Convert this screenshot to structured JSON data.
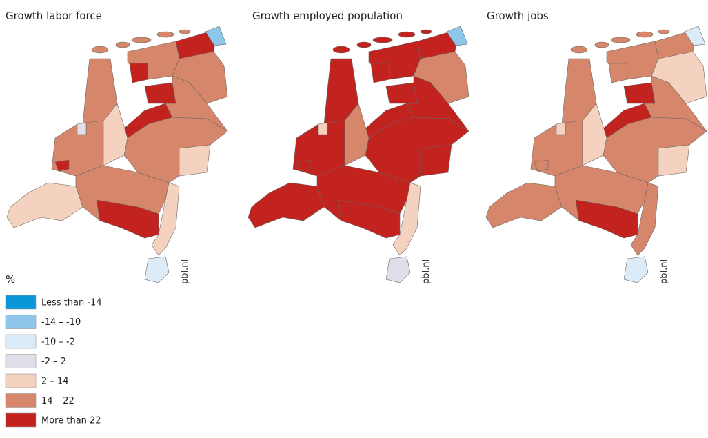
{
  "maps": [
    {
      "title": "Growth labor force"
    },
    {
      "title": "Growth employed population"
    },
    {
      "title": "Growth jobs"
    }
  ],
  "source": "pbl.nl",
  "legend": {
    "unit": "%",
    "items": [
      {
        "label": "Less than -14",
        "color": "#0a97d9"
      },
      {
        "label": "-14 – -10",
        "color": "#8fc6ec"
      },
      {
        "label": "-10 – -2",
        "color": "#dcebf8"
      },
      {
        "label": "-2 – 2",
        "color": "#e2dee9"
      },
      {
        "label": "2 – 14",
        "color": "#f5d2bf"
      },
      {
        "label": "14 – 22",
        "color": "#d6876b"
      },
      {
        "label": "More than 22",
        "color": "#c2231f"
      }
    ]
  }
}
